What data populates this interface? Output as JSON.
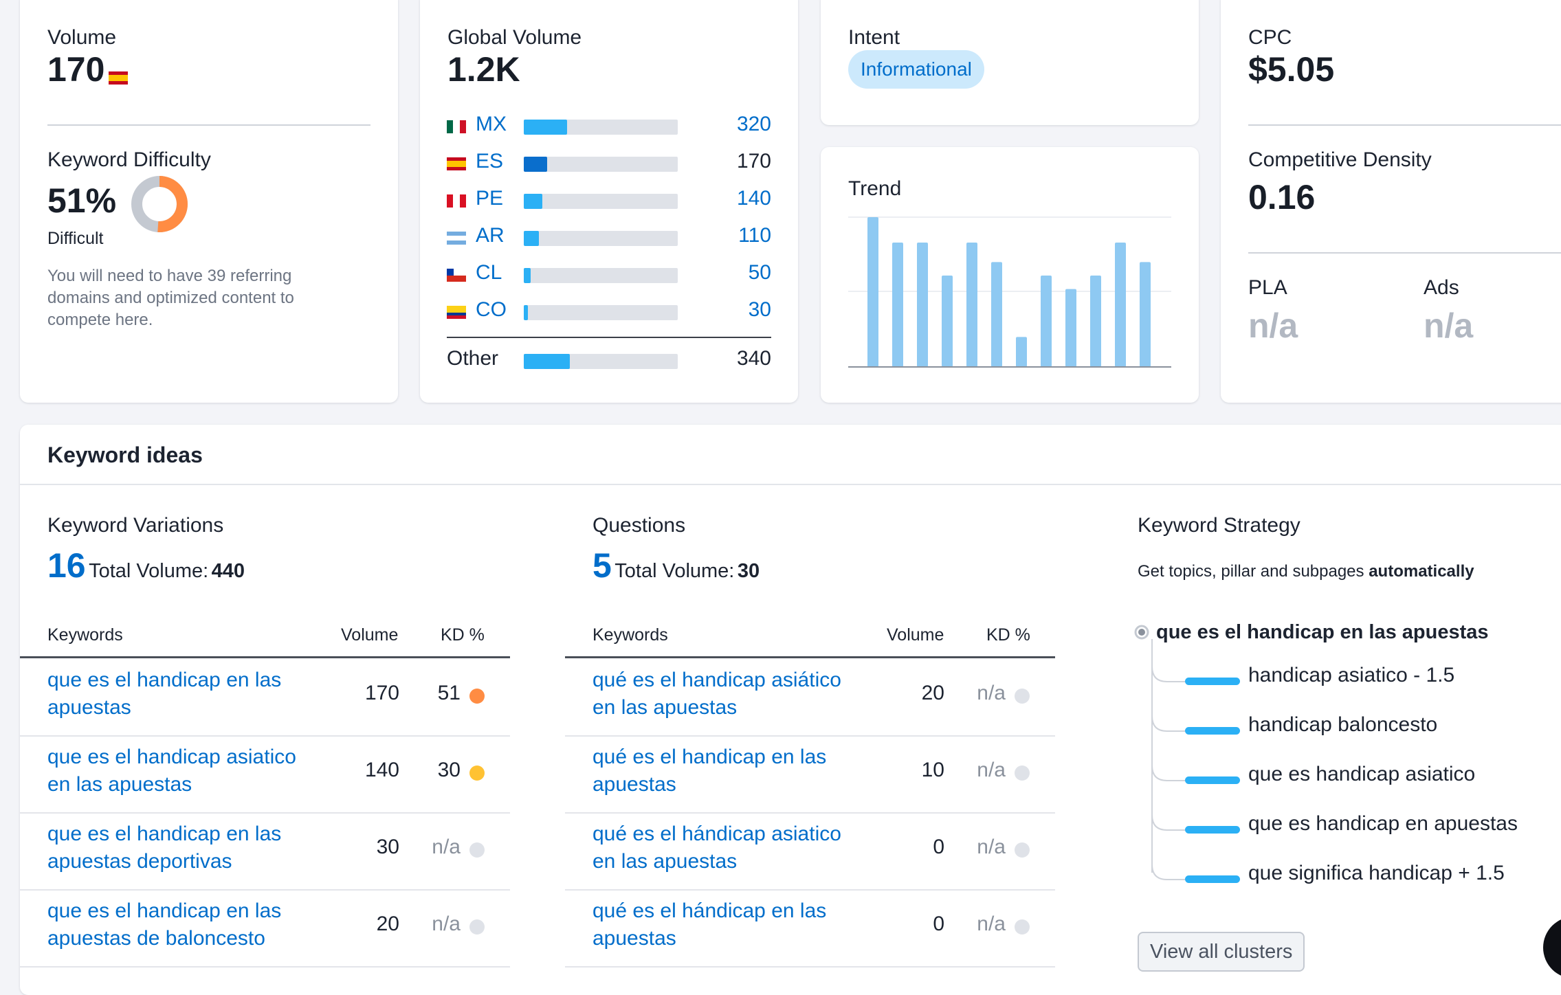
{
  "volume": {
    "label": "Volume",
    "value": "170",
    "kd_label": "Keyword Difficulty",
    "kd_value": "51%",
    "kd_level": "Difficult",
    "kd_percent": 51,
    "kd_description": "You will need to have 39 referring domains and optimized content to compete here."
  },
  "global_volume": {
    "label": "Global Volume",
    "value": "1.2K",
    "countries": [
      {
        "code": "MX",
        "value": "320",
        "share": 0.28,
        "flag": "mx"
      },
      {
        "code": "ES",
        "value": "170",
        "share": 0.15,
        "flag": "es",
        "highlight": true
      },
      {
        "code": "PE",
        "value": "140",
        "share": 0.12,
        "flag": "pe"
      },
      {
        "code": "AR",
        "value": "110",
        "share": 0.1,
        "flag": "ar"
      },
      {
        "code": "CL",
        "value": "50",
        "share": 0.045,
        "flag": "cl"
      },
      {
        "code": "CO",
        "value": "30",
        "share": 0.025,
        "flag": "co"
      }
    ],
    "other": {
      "label": "Other",
      "value": "340",
      "share": 0.3
    }
  },
  "intent": {
    "label": "Intent",
    "badge": "Informational"
  },
  "trend": {
    "label": "Trend",
    "bars": [
      1.0,
      0.83,
      0.83,
      0.61,
      0.83,
      0.7,
      0.2,
      0.61,
      0.52,
      0.61,
      0.83,
      0.7
    ]
  },
  "cpc": {
    "label": "CPC",
    "value": "$5.05",
    "cd_label": "Competitive Density",
    "cd_value": "0.16",
    "pla_label": "PLA",
    "pla_value": "n/a",
    "ads_label": "Ads",
    "ads_value": "n/a"
  },
  "ideas": {
    "title": "Keyword ideas",
    "variations": {
      "label": "Keyword Variations",
      "count": "16",
      "total_label": "Total Volume:",
      "total_value": "440",
      "headers": {
        "keywords": "Keywords",
        "volume": "Volume",
        "kd": "KD %"
      },
      "rows": [
        {
          "keyword": "que es el handicap en las apuestas",
          "volume": "170",
          "kd": "51",
          "dot": "#ff8c43"
        },
        {
          "keyword": "que es el handicap asiatico en las apuestas",
          "volume": "140",
          "kd": "30",
          "dot": "#ffc233"
        },
        {
          "keyword": "que es el handicap en las apuestas deportivas",
          "volume": "30",
          "kd": "n/a",
          "dot": "#dfe2e8"
        },
        {
          "keyword": "que es el handicap en las apuestas de baloncesto",
          "volume": "20",
          "kd": "n/a",
          "dot": "#dfe2e8"
        }
      ]
    },
    "questions": {
      "label": "Questions",
      "count": "5",
      "total_label": "Total Volume:",
      "total_value": "30",
      "headers": {
        "keywords": "Keywords",
        "volume": "Volume",
        "kd": "KD %"
      },
      "rows": [
        {
          "keyword": "qué es el handicap asiático en las apuestas",
          "volume": "20",
          "kd": "n/a",
          "dot": "#dfe2e8"
        },
        {
          "keyword": "qué es el handicap en las apuestas",
          "volume": "10",
          "kd": "n/a",
          "dot": "#dfe2e8"
        },
        {
          "keyword": "qué es el hándicap asiatico en las apuestas",
          "volume": "0",
          "kd": "n/a",
          "dot": "#dfe2e8"
        },
        {
          "keyword": "qué es el hándicap en las apuestas",
          "volume": "0",
          "kd": "n/a",
          "dot": "#dfe2e8"
        }
      ]
    },
    "strategy": {
      "label": "Keyword Strategy",
      "desc_prefix": "Get topics, pillar and subpages",
      "desc_bold": "automatically",
      "root": "que es el handicap en las apuestas",
      "children": [
        "handicap asiatico - 1.5",
        "handicap baloncesto",
        "que es handicap asiatico",
        "que es handicap en apuestas",
        "que significa handicap + 1.5"
      ],
      "button": "View all clusters"
    }
  },
  "colors": {
    "accent": "#006dca",
    "bar": "#2bb0f5",
    "trend_bar": "#8ec9f2",
    "kd_orange": "#ff8c43",
    "kd_gray": "#c4c9d1"
  }
}
